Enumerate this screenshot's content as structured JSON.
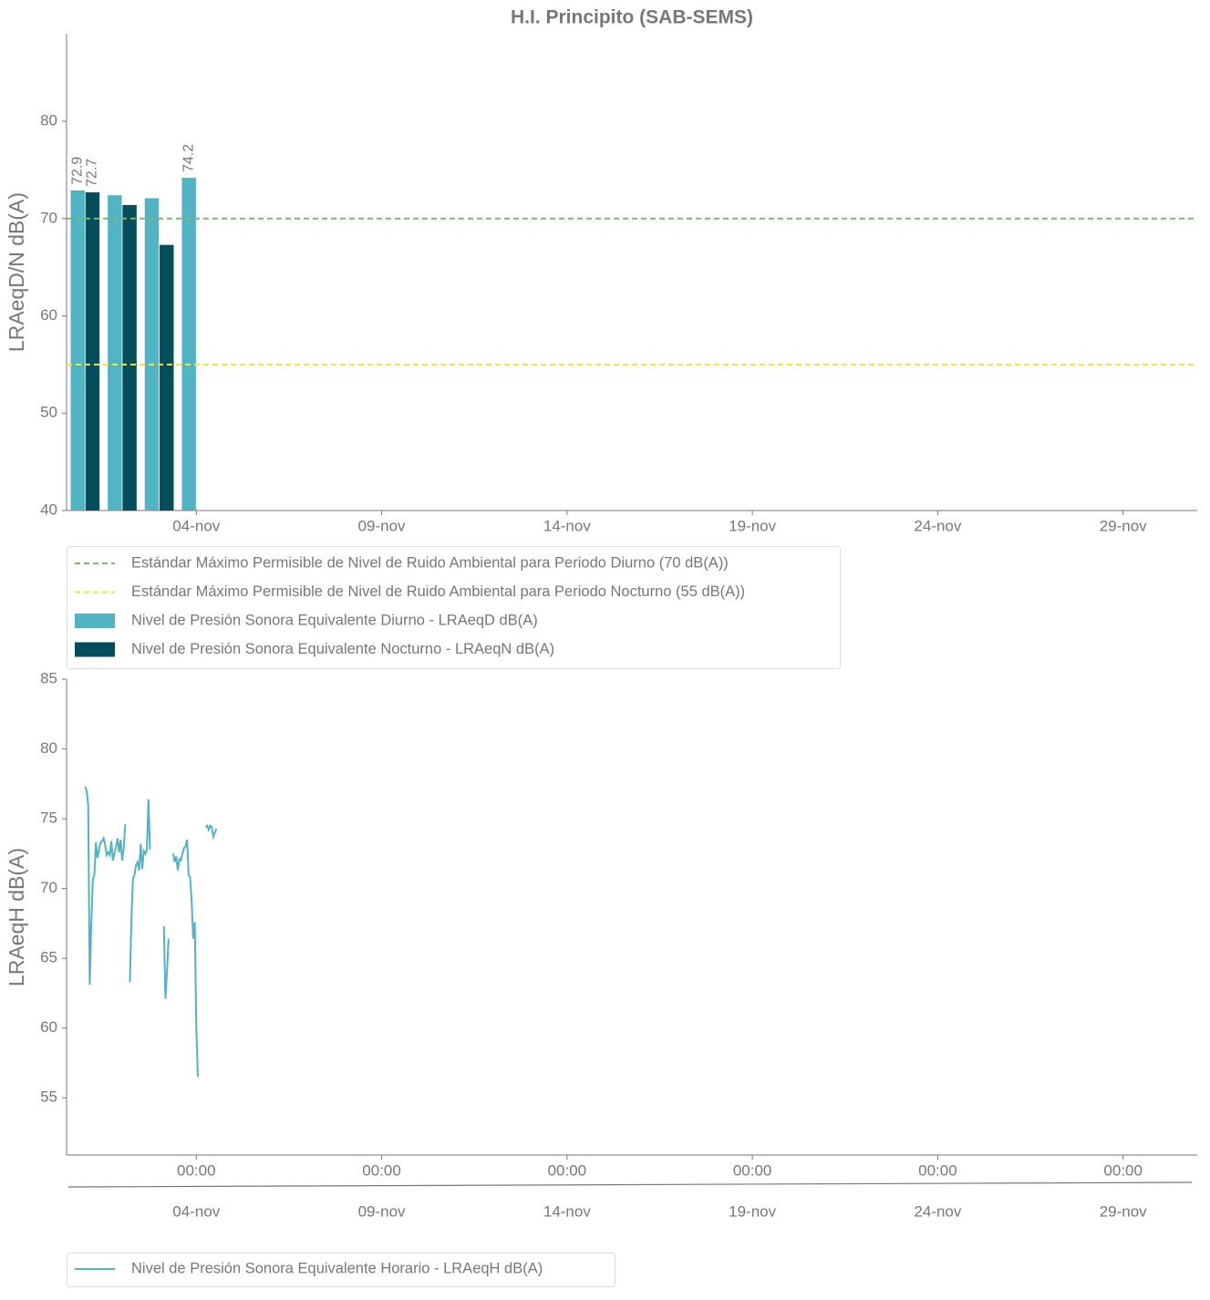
{
  "chart_data": [
    {
      "type": "bar",
      "title": "H.I. Principito (SAB-SEMS)",
      "y_label": "LRAeqD/N dB(A)",
      "x": [
        1,
        2,
        3,
        4
      ],
      "xlim": [
        0.5,
        31
      ],
      "xticks": [
        {
          "value": 4,
          "label": "04-nov"
        },
        {
          "value": 9,
          "label": "09-nov"
        },
        {
          "value": 14,
          "label": "14-nov"
        },
        {
          "value": 19,
          "label": "19-nov"
        },
        {
          "value": 24,
          "label": "24-nov"
        },
        {
          "value": 29,
          "label": "29-nov"
        }
      ],
      "ylim": [
        40,
        89
      ],
      "yticks": [
        40,
        50,
        60,
        70,
        80
      ],
      "reference_lines": [
        {
          "name": "Estándar Máximo Permisible de Nivel de Ruido Ambiental para Periodo Diurno (70 dB(A))",
          "value": 70,
          "color": "#7fb86e"
        },
        {
          "name": "Estándar Máximo Permisible de Nivel de Ruido Ambiental para Periodo Nocturno (55 dB(A))",
          "value": 55,
          "color": "#f2e33c"
        }
      ],
      "series": [
        {
          "name": "Nivel de Presión Sonora Equivalente Diurno - LRAeqD dB(A)",
          "color": "#52b4c2",
          "values": [
            72.9,
            72.4,
            72.1,
            74.2
          ],
          "value_labels": [
            "72.9",
            null,
            null,
            "74.2"
          ]
        },
        {
          "name": "Nivel de Presión Sonora Equivalente Nocturno - LRAeqN dB(A)",
          "color": "#034e5a",
          "values": [
            72.7,
            71.4,
            67.3,
            null
          ],
          "value_labels": [
            "72.7",
            null,
            null,
            null
          ]
        }
      ]
    },
    {
      "type": "line",
      "y_label": "LRAeqH dB(A)",
      "x": [
        1,
        1.0417,
        1.0833,
        1.125,
        1.1667,
        1.2083,
        1.25,
        1.2917,
        1.3333,
        1.375,
        1.4167,
        1.4583,
        1.5,
        1.5417,
        1.5833,
        1.625,
        1.6667,
        1.7083,
        1.75,
        1.7917,
        1.8333,
        1.875,
        1.9167,
        1.9583,
        2,
        2.0417,
        2.0833,
        2.125,
        2.1667,
        2.2083,
        2.25,
        2.2917,
        2.3333,
        2.375,
        2.4167,
        2.4583,
        2.5,
        2.5417,
        2.5833,
        2.625,
        2.6667,
        2.7083,
        2.75,
        2.7917,
        2.8333,
        2.875,
        2.9167,
        2.9583,
        3,
        3.0417,
        3.0833,
        3.125,
        3.1667,
        3.2083,
        3.25,
        3.2917,
        3.3333,
        3.375,
        3.4167,
        3.4583,
        3.5,
        3.5417,
        3.5833,
        3.625,
        3.6667,
        3.7083,
        3.75,
        3.7917,
        3.8333,
        3.875,
        3.9167,
        3.9583,
        4,
        4.0417,
        4.0833,
        4.125,
        4.1667,
        4.2083,
        4.25,
        4.2917,
        4.3333,
        4.375,
        4.4167,
        4.4583,
        4.5,
        4.5417
      ],
      "xlim": [
        0.5,
        31
      ],
      "xticks": [
        {
          "value": 4,
          "label": "00:00"
        },
        {
          "value": 9,
          "label": "00:00"
        },
        {
          "value": 14,
          "label": "00:00"
        },
        {
          "value": 19,
          "label": "00:00"
        },
        {
          "value": 24,
          "label": "00:00"
        },
        {
          "value": 29,
          "label": "00:00"
        }
      ],
      "xticks_secondary": [
        {
          "value": 4,
          "label": "04-nov"
        },
        {
          "value": 9,
          "label": "09-nov"
        },
        {
          "value": 14,
          "label": "14-nov"
        },
        {
          "value": 19,
          "label": "19-nov"
        },
        {
          "value": 24,
          "label": "24-nov"
        },
        {
          "value": 29,
          "label": "29-nov"
        }
      ],
      "ylim": [
        50.9,
        85
      ],
      "yticks": [
        55,
        60,
        65,
        70,
        75,
        80,
        85
      ],
      "series": [
        {
          "name": "Nivel de Presión Sonora Equivalente Horario - LRAeqH dB(A)",
          "color": "#52b4c2",
          "values": [
            77.3,
            77.0,
            76.0,
            63.1,
            67.5,
            70.6,
            71.0,
            73.3,
            72.2,
            72.8,
            73.3,
            73.4,
            73.6,
            73.1,
            72.4,
            72.6,
            72.4,
            73.4,
            72.0,
            72.5,
            73.0,
            73.6,
            72.6,
            73.5,
            72.0,
            72.9,
            74.6,
            null,
            null,
            63.3,
            67.9,
            70.7,
            71.0,
            71.7,
            71.9,
            71.3,
            73.2,
            71.4,
            72.7,
            72.5,
            72.8,
            76.4,
            72.8,
            null,
            null,
            null,
            null,
            null,
            null,
            null,
            null,
            67.3,
            62.1,
            64.0,
            66.4,
            null,
            null,
            72.5,
            71.9,
            72.3,
            71.3,
            72.1,
            72.0,
            72.5,
            72.9,
            73.0,
            73.5,
            71.0,
            70.8,
            69.0,
            66.4,
            67.6,
            60.0,
            56.5,
            null,
            null,
            null,
            null,
            74.4,
            74.5,
            74.2,
            74.5,
            74.4,
            73.7,
            74.0,
            74.3
          ]
        }
      ]
    }
  ]
}
